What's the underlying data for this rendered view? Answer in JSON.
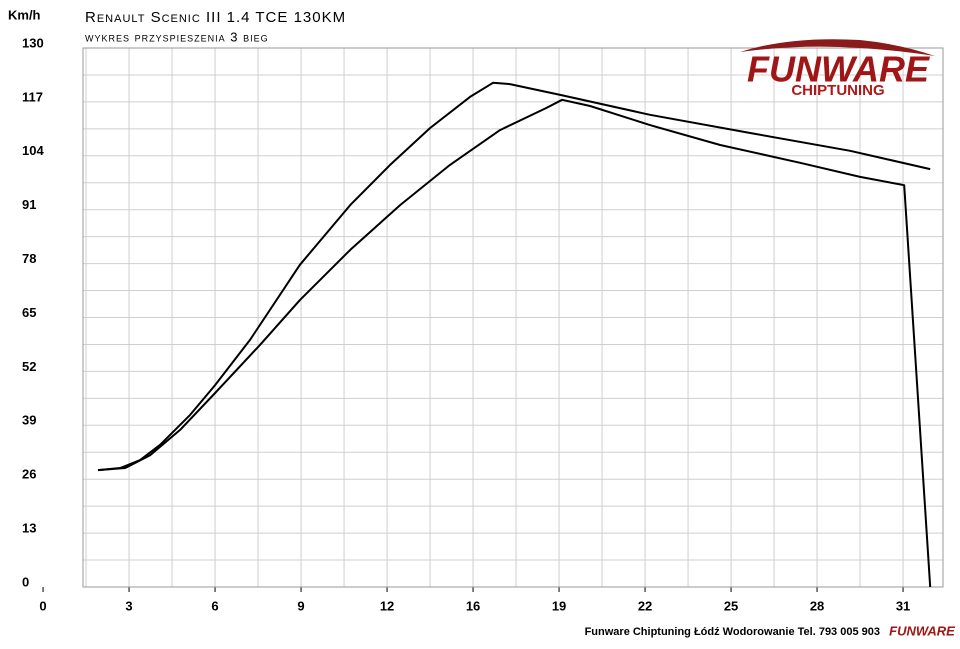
{
  "chart_data": {
    "type": "line",
    "title": "Renault Scenic III 1.4 TCE 130KM",
    "subtitle": "wykres przyspieszenia 3 bieg",
    "y_label": "Km/h",
    "footer": "Funware Chiptuning Łódź Wodorowanie Tel. 793 005 903",
    "logo_text": "FUNWARE",
    "logo_subtext": "CHIPTUNING",
    "grid": true,
    "xlim": [
      1.44,
      32.44
    ],
    "ylim": [
      0,
      130
    ],
    "xticks": [
      0,
      {
        "value": 3.1,
        "label": "3"
      },
      {
        "value": 6.2,
        "label": "6"
      },
      {
        "value": 9.3,
        "label": "9"
      },
      {
        "value": 12.4,
        "label": "12"
      },
      {
        "value": 15.5,
        "label": "16"
      },
      {
        "value": 18.6,
        "label": "19"
      },
      {
        "value": 21.7,
        "label": "22"
      },
      {
        "value": 24.8,
        "label": "25"
      },
      {
        "value": 27.9,
        "label": "28"
      },
      {
        "value": 31,
        "label": "31"
      }
    ],
    "yticks": [
      0,
      13,
      26,
      39,
      52,
      65,
      78,
      91,
      104,
      117,
      130
    ],
    "series": [
      {
        "color": "#000000",
        "x": [
          1.98,
          2.78,
          3.5,
          4.22,
          5.3,
          6.2,
          7.46,
          9.26,
          11.07,
          12.51,
          13.95,
          15.39,
          16.22,
          16.83,
          18.64,
          21.88,
          25.49,
          29.09,
          31.98
        ],
        "values": [
          28.2,
          28.7,
          30.6,
          34.3,
          41.5,
          48.7,
          59.6,
          77.7,
          92.1,
          101.8,
          110.7,
          118.2,
          121.6,
          121.3,
          118.7,
          113.9,
          109.5,
          105.2,
          100.8
        ]
      },
      {
        "color": "#000000",
        "x": [
          1.98,
          2.96,
          3.86,
          4.94,
          6.2,
          7.82,
          9.26,
          11.07,
          12.87,
          14.67,
          16.47,
          18.13,
          18.71,
          19.72,
          21.88,
          24.41,
          27.29,
          29.45,
          30.89,
          31.04,
          31.98
        ],
        "values": [
          28.2,
          28.7,
          31.8,
          37.9,
          46.8,
          58.4,
          69.2,
          81.3,
          92.1,
          101.8,
          110.2,
          115.5,
          117.5,
          116.0,
          111.4,
          106.6,
          102.3,
          98.9,
          97.1,
          96.9,
          0
        ]
      }
    ]
  }
}
